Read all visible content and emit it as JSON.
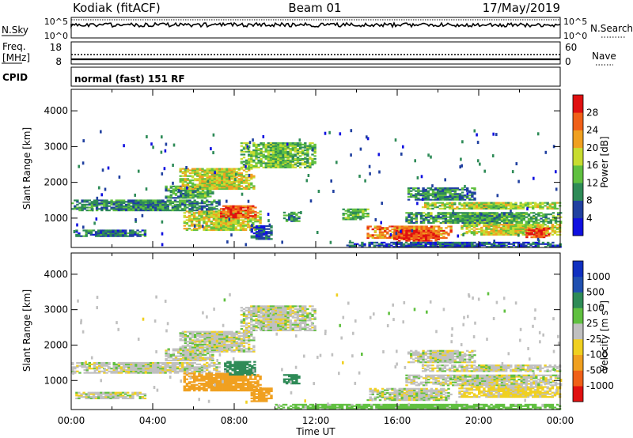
{
  "header": {
    "station": "Kodiak (fitACF)",
    "beam": "Beam 01",
    "date": "17/May/2019"
  },
  "nsky_panel": {
    "left_label": "N.Sky",
    "right_label": "N.Search",
    "left_ticks": [
      "10^5",
      "10^0"
    ],
    "right_ticks": [
      "10^5",
      "10^0"
    ]
  },
  "freq_panel": {
    "left_label_line1": "Freq.",
    "left_label_line2": "[MHz]",
    "left_ticks": [
      "18",
      "8"
    ],
    "right_label": "Nave",
    "right_ticks": [
      "60",
      "0"
    ]
  },
  "cpid_panel": {
    "label": "CPID",
    "text": "normal (fast) 151 RF"
  },
  "x_axis": {
    "label": "Time UT",
    "ticks": [
      "00:00",
      "04:00",
      "08:00",
      "12:00",
      "16:00",
      "20:00",
      "00:00"
    ]
  },
  "colors": {
    "power_scale": [
      "#1010e0",
      "#2040a0",
      "#2e8b57",
      "#60c040",
      "#c8dc30",
      "#f0a020",
      "#f06018",
      "#e01010"
    ],
    "velocity_scale": [
      "#e01010",
      "#f06018",
      "#f0a020",
      "#f0d020",
      "#c0c0c0",
      "#60c040",
      "#2e8b57",
      "#2050b0",
      "#1030c0"
    ]
  },
  "chart_data": [
    {
      "type": "heatmap",
      "name": "power",
      "xlabel": "",
      "ylabel": "Slant Range [km]",
      "xlim_hours": [
        0,
        24
      ],
      "ylim": [
        180,
        4600
      ],
      "yticks": [
        "1000",
        "2000",
        "3000",
        "4000"
      ],
      "colorbar": {
        "label": "Power [dB]",
        "min": 0,
        "max": 32,
        "ticks": [
          "4",
          "8",
          "12",
          "16",
          "20",
          "24",
          "28"
        ]
      },
      "regions": [
        {
          "t0": 0.0,
          "t1": 7.3,
          "r0": 1200,
          "r1": 1500,
          "v": 10
        },
        {
          "t0": 0.2,
          "t1": 3.6,
          "r0": 480,
          "r1": 660,
          "v": 8
        },
        {
          "t0": 4.6,
          "t1": 7.0,
          "r0": 1550,
          "r1": 1880,
          "v": 12
        },
        {
          "t0": 5.3,
          "t1": 9.0,
          "r0": 1800,
          "r1": 2400,
          "v": 18
        },
        {
          "t0": 8.3,
          "t1": 12.0,
          "r0": 2400,
          "r1": 3100,
          "v": 14
        },
        {
          "t0": 5.5,
          "t1": 9.3,
          "r0": 650,
          "r1": 1200,
          "v": 18
        },
        {
          "t0": 7.3,
          "t1": 9.0,
          "r0": 1000,
          "r1": 1350,
          "v": 27
        },
        {
          "t0": 8.8,
          "t1": 9.8,
          "r0": 400,
          "r1": 800,
          "v": 7
        },
        {
          "t0": 10.4,
          "t1": 11.2,
          "r0": 900,
          "r1": 1150,
          "v": 10
        },
        {
          "t0": 13.3,
          "t1": 14.5,
          "r0": 950,
          "r1": 1250,
          "v": 13
        },
        {
          "t0": 14.5,
          "t1": 18.6,
          "r0": 430,
          "r1": 780,
          "v": 24
        },
        {
          "t0": 15.8,
          "t1": 18.0,
          "r0": 350,
          "r1": 650,
          "v": 28
        },
        {
          "t0": 16.5,
          "t1": 19.8,
          "r0": 1500,
          "r1": 1850,
          "v": 10
        },
        {
          "t0": 17.2,
          "t1": 24.0,
          "r0": 1250,
          "r1": 1450,
          "v": 16
        },
        {
          "t0": 16.4,
          "t1": 24.0,
          "r0": 850,
          "r1": 1150,
          "v": 12
        },
        {
          "t0": 19.0,
          "t1": 24.0,
          "r0": 520,
          "r1": 840,
          "v": 18
        },
        {
          "t0": 22.3,
          "t1": 23.5,
          "r0": 450,
          "r1": 700,
          "v": 27
        },
        {
          "t0": 13.5,
          "t1": 24.0,
          "r0": 180,
          "r1": 320,
          "v": 6
        }
      ]
    },
    {
      "type": "heatmap",
      "name": "velocity",
      "xlabel": "Time UT",
      "ylabel": "Slant Range [km]",
      "xlim_hours": [
        0,
        24
      ],
      "ylim": [
        180,
        4600
      ],
      "yticks": [
        "1000",
        "2000",
        "3000",
        "4000"
      ],
      "colorbar": {
        "label": "Velocity [m s^-1]",
        "ticks": [
          "-1000",
          "-500",
          "-100",
          "-25",
          "25",
          "100",
          "500",
          "1000"
        ]
      },
      "regions": [
        {
          "t0": 0.0,
          "t1": 7.3,
          "r0": 1200,
          "r1": 1500,
          "v": 0
        },
        {
          "t0": 0.2,
          "t1": 3.6,
          "r0": 480,
          "r1": 660,
          "v": 0
        },
        {
          "t0": 4.6,
          "t1": 7.0,
          "r0": 1550,
          "r1": 1880,
          "v": 0
        },
        {
          "t0": 5.3,
          "t1": 9.0,
          "r0": 1800,
          "r1": 2400,
          "v": 0
        },
        {
          "t0": 8.3,
          "t1": 12.0,
          "r0": 2400,
          "r1": 3100,
          "v": 0
        },
        {
          "t0": 5.5,
          "t1": 9.3,
          "r0": 700,
          "r1": 1200,
          "v": -300
        },
        {
          "t0": 7.5,
          "t1": 9.0,
          "r0": 1150,
          "r1": 1550,
          "v": 200
        },
        {
          "t0": 8.8,
          "t1": 9.8,
          "r0": 400,
          "r1": 800,
          "v": -200
        },
        {
          "t0": 10.4,
          "t1": 11.2,
          "r0": 900,
          "r1": 1150,
          "v": 150
        },
        {
          "t0": 14.5,
          "t1": 18.6,
          "r0": 430,
          "r1": 780,
          "v": 0
        },
        {
          "t0": 16.5,
          "t1": 19.8,
          "r0": 1500,
          "r1": 1850,
          "v": 0
        },
        {
          "t0": 17.2,
          "t1": 24.0,
          "r0": 1250,
          "r1": 1450,
          "v": 0
        },
        {
          "t0": 16.4,
          "t1": 24.0,
          "r0": 850,
          "r1": 1150,
          "v": 0
        },
        {
          "t0": 19.0,
          "t1": 24.0,
          "r0": 520,
          "r1": 840,
          "v": -50
        },
        {
          "t0": 10.0,
          "t1": 24.0,
          "r0": 180,
          "r1": 320,
          "v": 60
        }
      ]
    }
  ]
}
